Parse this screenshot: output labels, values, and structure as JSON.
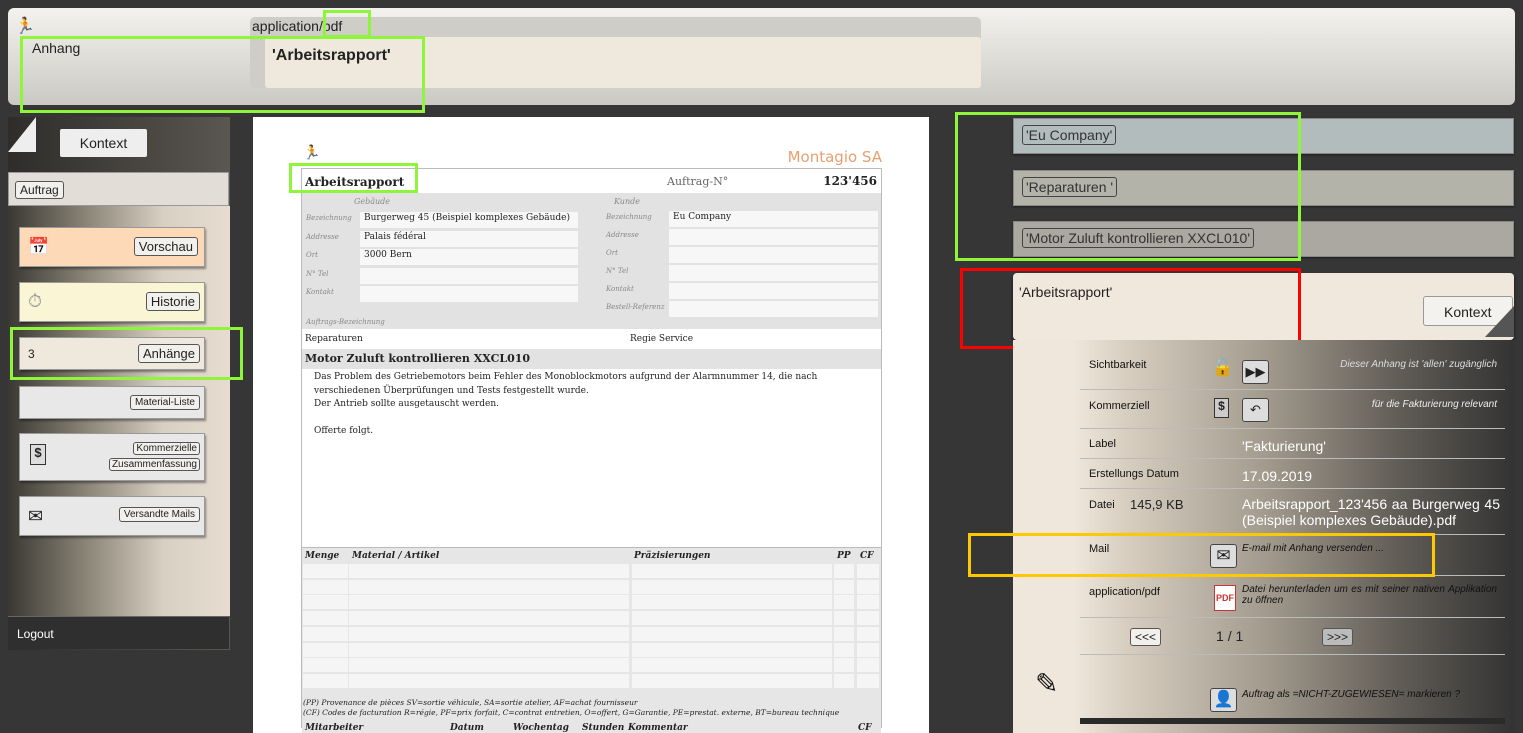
{
  "header": {
    "mime": "application/pdf",
    "section": "Anhang",
    "title": "'Arbeitsrapport'"
  },
  "sidebar": {
    "context_label": "Kontext",
    "auftrag_label": "Auftrag",
    "items": [
      {
        "label": "Vorschau",
        "icon": "calendar-icon",
        "color": "#fdd9b8"
      },
      {
        "label": "Historie",
        "icon": "stopwatch-icon",
        "color": "#faf5d4"
      },
      {
        "label": "Anhänge",
        "count": "3",
        "color": "#efe8dc"
      },
      {
        "label": "Material-Liste",
        "color": "#e8e8e8"
      },
      {
        "label": "Kommerzielle",
        "label2": "Zusammenfassung",
        "icon": "invoice-dollar-icon",
        "color": "#e8e8e8"
      },
      {
        "label": "Versandte Mails",
        "icon": "envelope-icon",
        "color": "#e8e8e8"
      }
    ],
    "logout": "Logout"
  },
  "pdf": {
    "company": "Montagio SA",
    "doc_title": "Arbeitsrapport",
    "order_label": "Auftrag-N°",
    "order_no": "123'456",
    "building_header": "Gebäude",
    "customer_header": "Kunde",
    "building_fields": [
      {
        "label": "Bezeichnung",
        "value": "Burgerweg 45 (Beispiel komplexes Gebäude)"
      },
      {
        "label": "Addresse",
        "value": "Palais fédéral"
      },
      {
        "label": "Ort",
        "value": "3000 Bern"
      },
      {
        "label": "N° Tel",
        "value": ""
      },
      {
        "label": "Kontakt",
        "value": ""
      }
    ],
    "customer_fields": [
      {
        "label": "Bezeichnung",
        "value": "Eu Company"
      },
      {
        "label": "Addresse",
        "value": ""
      },
      {
        "label": "Ort",
        "value": ""
      },
      {
        "label": "N° Tel",
        "value": ""
      },
      {
        "label": "Kontakt",
        "value": ""
      },
      {
        "label": "Bestell-Referenz",
        "value": ""
      }
    ],
    "order_desc_label": "Auftrags-Bezeichnung",
    "category": "Reparaturen",
    "service": "Regie Service",
    "subject": "Motor Zuluft kontrollieren XXCL010",
    "body": [
      "Das Problem des Getriebemotors beim Fehler des Monoblockmotors aufgrund der Alarmnummer 14, die nach",
      "verschiedenen Überprüfungen und Tests festgestellt wurde.",
      "Der Antrieb sollte ausgetauscht werden.",
      "",
      "Offerte folgt."
    ],
    "material_headers": [
      "Menge",
      "Material / Artikel",
      "Präzisierungen",
      "PP",
      "CF"
    ],
    "note_pp": "(PP) Provenance de pièces SV=sortie véhicule, SA=sortie atelier, AF=achat fournisseur",
    "note_cf": "(CF) Codes de facturation R=régie, PF=prix forfait, C=contrat entretien, O=offert, G=Garantie, PE=prestat. externe, BT=bureau technique",
    "work_headers": [
      "Mitarbeiter",
      "Datum",
      "Wochentag",
      "Stunden",
      "Kommentar",
      "CF"
    ]
  },
  "context_chain": [
    "'Eu Company'",
    "'Reparaturen '",
    "'Motor Zuluft kontrollieren XXCL010'"
  ],
  "current": {
    "title": "'Arbeitsrapport'",
    "context_label": "Kontext"
  },
  "detail": {
    "visibility": {
      "label": "Sichtbarkeit",
      "info": "Dieser Anhang ist 'allen' zugänglich"
    },
    "commercial": {
      "label": "Kommerziell",
      "info": "für die Fakturierung relevant"
    },
    "label": {
      "label": "Label",
      "value": "'Fakturierung'"
    },
    "date": {
      "label": "Erstellungs Datum",
      "value": "17.09.2019"
    },
    "file": {
      "label": "Datei",
      "size": "145,9 KB",
      "name": "Arbeitsrapport_123'456 aa Burgerweg 45 (Beispiel komplexes Gebäude).pdf"
    },
    "mail": {
      "label": "Mail",
      "action": "E-mail mit Anhang versenden ..."
    },
    "download": {
      "label": "application/pdf",
      "action": "Datei herunterladen um es mit seiner nativen Applikation zu öffnen"
    },
    "pager": {
      "prev": "<<<",
      "current": "1",
      "sep": "/",
      "total": "1",
      "next": ">>>"
    },
    "unassign": "Auftrag als =NICHT-ZUGEWIESEN= markieren ?"
  },
  "colors": {
    "highlight_green": "#8ef53a",
    "highlight_red": "#ff0000",
    "highlight_yellow": "#ffc800"
  }
}
